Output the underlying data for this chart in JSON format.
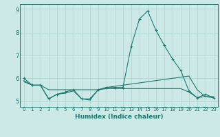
{
  "xlabel": "Humidex (Indice chaleur)",
  "x": [
    0,
    1,
    2,
    3,
    4,
    5,
    6,
    7,
    8,
    9,
    10,
    11,
    12,
    13,
    14,
    15,
    16,
    17,
    18,
    19,
    20,
    21,
    22,
    23
  ],
  "line1": [
    6.0,
    5.7,
    5.7,
    5.1,
    5.3,
    5.4,
    5.5,
    5.1,
    5.1,
    5.5,
    5.6,
    5.6,
    5.6,
    7.4,
    8.6,
    8.95,
    8.1,
    7.45,
    6.85,
    6.35,
    5.45,
    5.15,
    5.3,
    5.15
  ],
  "line2": [
    5.9,
    5.7,
    5.7,
    5.5,
    5.5,
    5.5,
    5.5,
    5.5,
    5.5,
    5.5,
    5.6,
    5.65,
    5.7,
    5.75,
    5.8,
    5.85,
    5.9,
    5.95,
    6.0,
    6.05,
    6.1,
    5.5,
    5.2,
    5.2
  ],
  "line3": [
    5.85,
    5.7,
    5.7,
    5.1,
    5.3,
    5.35,
    5.45,
    5.1,
    5.05,
    5.5,
    5.55,
    5.55,
    5.55,
    5.55,
    5.55,
    5.55,
    5.55,
    5.55,
    5.55,
    5.55,
    5.4,
    5.15,
    5.2,
    5.15
  ],
  "line_color": "#1a7a6e",
  "bg_color": "#cce9e7",
  "grid_color": "#aad4d0",
  "ylim": [
    4.75,
    9.25
  ],
  "xlim": [
    -0.5,
    23.5
  ],
  "yticks": [
    5,
    6,
    7,
    8,
    9
  ],
  "xtick_labels": [
    "0",
    "1",
    "2",
    "3",
    "4",
    "5",
    "6",
    "7",
    "8",
    "9",
    "10",
    "11",
    "12",
    "13",
    "14",
    "15",
    "16",
    "17",
    "18",
    "19",
    "20",
    "21",
    "22",
    "23"
  ]
}
